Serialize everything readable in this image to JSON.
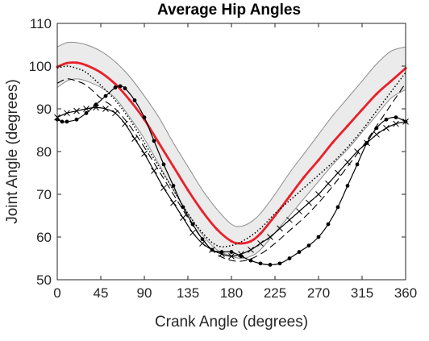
{
  "chart_data": {
    "type": "line",
    "title": "Average Hip Angles",
    "xlabel": "Crank Angle (degrees)",
    "ylabel": "Joint Angle (degrees)",
    "xlim": [
      0,
      360
    ],
    "ylim": [
      50,
      110
    ],
    "xticks": [
      0,
      45,
      90,
      135,
      180,
      225,
      270,
      315,
      360
    ],
    "yticks": [
      50,
      60,
      70,
      80,
      90,
      100,
      110
    ],
    "grid": false,
    "colors": {
      "mean": "#e8202a",
      "band_fill": "#ebebeb",
      "band_edge": "#8c8c8c",
      "series": "#000000"
    },
    "band": {
      "x": [
        0,
        10,
        20,
        30,
        45,
        60,
        75,
        90,
        105,
        120,
        135,
        150,
        165,
        180,
        190,
        200,
        210,
        225,
        240,
        255,
        270,
        285,
        300,
        315,
        330,
        345,
        360
      ],
      "upper": [
        104.5,
        105.5,
        105.5,
        105,
        103.5,
        101,
        97.5,
        93,
        88,
        82,
        76.5,
        71,
        66.5,
        63,
        62.5,
        63.5,
        65.5,
        70,
        75,
        79.5,
        84,
        88.5,
        92.5,
        96.5,
        100.5,
        103.5,
        104.5
      ],
      "lower": [
        95,
        96.5,
        97,
        96.5,
        95,
        92.5,
        88,
        83,
        77,
        71,
        65.5,
        60.5,
        57,
        55.5,
        55,
        55.5,
        57,
        61,
        65,
        69,
        73,
        77,
        80.5,
        84.5,
        88.5,
        92.5,
        94.5
      ]
    },
    "series": [
      {
        "style": "solid-red-thick",
        "x": [
          0,
          10,
          20,
          30,
          45,
          60,
          75,
          90,
          105,
          120,
          135,
          150,
          165,
          180,
          190,
          200,
          210,
          225,
          240,
          255,
          270,
          285,
          300,
          315,
          330,
          345,
          360
        ],
        "values": [
          99.8,
          100.7,
          100.8,
          100.2,
          98.5,
          95.8,
          92,
          87.5,
          82,
          76.5,
          71,
          66,
          61.8,
          59,
          58.5,
          59,
          60.8,
          65,
          69.5,
          74,
          78,
          82.2,
          86,
          89.8,
          93.5,
          96.5,
          99.5
        ]
      },
      {
        "style": "dashed",
        "x": [
          0,
          10,
          20,
          30,
          45,
          60,
          75,
          90,
          105,
          120,
          135,
          150,
          165,
          180,
          195,
          210,
          225,
          240,
          255,
          270,
          285,
          300,
          315,
          330,
          345,
          360
        ],
        "values": [
          96,
          97,
          96.5,
          95.5,
          92.5,
          90,
          86,
          81,
          75.5,
          70,
          64.5,
          59.5,
          56,
          54.5,
          54.5,
          56,
          58.5,
          61.5,
          64.5,
          68,
          72,
          76.5,
          81,
          86,
          91,
          96
        ]
      },
      {
        "style": "dotted",
        "x": [
          0,
          10,
          20,
          30,
          45,
          60,
          75,
          90,
          105,
          120,
          135,
          150,
          165,
          180,
          195,
          210,
          225,
          240,
          255,
          270,
          285,
          300,
          315,
          330,
          345,
          360
        ],
        "values": [
          99.5,
          100,
          99.5,
          98.5,
          95.5,
          92,
          87.5,
          82,
          76.5,
          71,
          65.5,
          61,
          58,
          58,
          59.5,
          62,
          65.5,
          68.5,
          71.5,
          74.5,
          77.5,
          81,
          85,
          89.5,
          94,
          98.5
        ]
      },
      {
        "style": "solid-dot-markers",
        "x": [
          0,
          5,
          10,
          20,
          30,
          40,
          50,
          60,
          65,
          70,
          80,
          90,
          100,
          110,
          120,
          130,
          140,
          150,
          160,
          170,
          180,
          190,
          200,
          210,
          220,
          230,
          240,
          250,
          260,
          270,
          280,
          290,
          300,
          310,
          320,
          330,
          340,
          350,
          360
        ],
        "values": [
          87.5,
          87,
          87,
          87.5,
          89,
          91,
          93,
          95,
          95.3,
          94.8,
          92,
          88,
          82.5,
          77,
          72,
          67,
          63,
          59.5,
          57,
          56.5,
          56.5,
          55.5,
          54.5,
          53.8,
          53.5,
          53.8,
          55,
          56.5,
          58,
          60,
          63,
          67,
          72,
          77,
          82,
          85.5,
          87.5,
          88,
          87
        ]
      },
      {
        "style": "solid-x-markers",
        "x": [
          0,
          10,
          20,
          30,
          40,
          50,
          60,
          70,
          80,
          90,
          100,
          110,
          120,
          130,
          140,
          150,
          160,
          170,
          180,
          190,
          200,
          210,
          220,
          230,
          240,
          250,
          260,
          270,
          280,
          290,
          300,
          310,
          320,
          330,
          340,
          350,
          360
        ],
        "values": [
          88,
          89,
          89.5,
          90,
          90.3,
          90,
          89,
          86.5,
          83,
          79.5,
          75.5,
          71.5,
          68,
          64.5,
          61,
          58.5,
          57,
          56,
          55.5,
          56,
          57,
          58.5,
          60,
          62,
          64,
          66,
          68,
          70,
          72.5,
          75,
          77.5,
          80,
          82,
          84,
          85.5,
          86.5,
          87
        ]
      }
    ]
  }
}
